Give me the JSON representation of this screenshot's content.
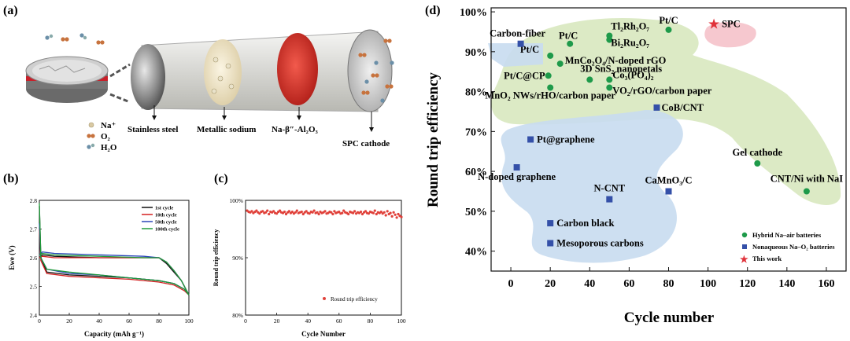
{
  "panels": {
    "a": "(a)",
    "b": "(b)",
    "c": "(c)",
    "d": "(d)"
  },
  "panel_a": {
    "labels": {
      "stainless": "Stainless steel",
      "sodium": "Metallic sodium",
      "electrolyte": "Na-β″-Al₂O₃",
      "cathode": "SPC cathode"
    },
    "legend": [
      {
        "label": "Na⁺",
        "color": "#d9c9a3"
      },
      {
        "label": "O₂",
        "color": "#c7733e"
      },
      {
        "label": "H₂O",
        "color": "#6b8fa8"
      }
    ]
  },
  "chart_data": [
    {
      "type": "line",
      "panel": "b",
      "xlabel": "Capacity (mAh g⁻¹)",
      "ylabel": "Ewe (V)",
      "xlim": [
        0,
        100
      ],
      "ylim": [
        2.4,
        2.8
      ],
      "xticks": [
        0,
        20,
        40,
        60,
        80,
        100
      ],
      "yticks": [
        2.4,
        2.5,
        2.6,
        2.7,
        2.8
      ],
      "legend_position": "top-right",
      "series": [
        {
          "name": "1st cycle",
          "color": "#111111",
          "charge": [
            [
              0,
              2.6
            ],
            [
              2,
              2.61
            ],
            [
              10,
              2.605
            ],
            [
              40,
              2.6
            ],
            [
              70,
              2.6
            ],
            [
              80,
              2.6
            ],
            [
              85,
              2.58
            ],
            [
              90,
              2.55
            ],
            [
              95,
              2.52
            ],
            [
              100,
              2.47
            ]
          ],
          "discharge": [
            [
              100,
              2.47
            ],
            [
              97,
              2.49
            ],
            [
              90,
              2.51
            ],
            [
              80,
              2.52
            ],
            [
              60,
              2.53
            ],
            [
              40,
              2.535
            ],
            [
              20,
              2.54
            ],
            [
              5,
              2.55
            ],
            [
              1,
              2.6
            ],
            [
              0,
              2.78
            ]
          ]
        },
        {
          "name": "10th cycle",
          "color": "#d42020",
          "charge": [
            [
              0,
              2.6
            ],
            [
              2,
              2.605
            ],
            [
              10,
              2.6
            ],
            [
              40,
              2.6
            ],
            [
              70,
              2.6
            ],
            [
              80,
              2.6
            ],
            [
              85,
              2.585
            ],
            [
              90,
              2.555
            ],
            [
              95,
              2.52
            ],
            [
              100,
              2.47
            ]
          ],
          "discharge": [
            [
              100,
              2.47
            ],
            [
              97,
              2.485
            ],
            [
              90,
              2.505
            ],
            [
              80,
              2.515
            ],
            [
              60,
              2.525
            ],
            [
              40,
              2.53
            ],
            [
              20,
              2.535
            ],
            [
              5,
              2.545
            ],
            [
              1,
              2.59
            ],
            [
              0,
              2.7
            ]
          ]
        },
        {
          "name": "50th cycle",
          "color": "#2a46b8",
          "charge": [
            [
              0,
              2.61
            ],
            [
              2,
              2.62
            ],
            [
              10,
              2.615
            ],
            [
              40,
              2.61
            ],
            [
              70,
              2.605
            ],
            [
              80,
              2.6
            ],
            [
              85,
              2.585
            ],
            [
              90,
              2.555
            ],
            [
              95,
              2.52
            ],
            [
              100,
              2.47
            ]
          ],
          "discharge": [
            [
              100,
              2.47
            ],
            [
              97,
              2.49
            ],
            [
              90,
              2.51
            ],
            [
              80,
              2.52
            ],
            [
              60,
              2.53
            ],
            [
              40,
              2.54
            ],
            [
              20,
              2.545
            ],
            [
              5,
              2.56
            ],
            [
              1,
              2.6
            ],
            [
              0,
              2.72
            ]
          ]
        },
        {
          "name": "100th cycle",
          "color": "#1f9a3a",
          "charge": [
            [
              0,
              2.61
            ],
            [
              2,
              2.615
            ],
            [
              10,
              2.61
            ],
            [
              40,
              2.605
            ],
            [
              70,
              2.6
            ],
            [
              80,
              2.6
            ],
            [
              85,
              2.585
            ],
            [
              90,
              2.555
            ],
            [
              95,
              2.52
            ],
            [
              100,
              2.47
            ]
          ],
          "discharge": [
            [
              100,
              2.47
            ],
            [
              97,
              2.49
            ],
            [
              90,
              2.51
            ],
            [
              80,
              2.52
            ],
            [
              60,
              2.53
            ],
            [
              40,
              2.54
            ],
            [
              20,
              2.55
            ],
            [
              5,
              2.56
            ],
            [
              1,
              2.6
            ],
            [
              0,
              2.79
            ]
          ]
        }
      ]
    },
    {
      "type": "scatter",
      "panel": "c",
      "xlabel": "Cycle Number",
      "ylabel": "Round trip efficiency",
      "xlim": [
        0,
        100
      ],
      "ylim": [
        80,
        100
      ],
      "xticks": [
        0,
        20,
        40,
        60,
        80,
        100
      ],
      "yticks": [
        80,
        90,
        100
      ],
      "ytick_labels": [
        "80%",
        "90%",
        "100%"
      ],
      "legend_position": "bottom-right",
      "series": [
        {
          "name": "Round trip efficiency",
          "color": "#e0413a",
          "marker": "circle"
        }
      ],
      "x": [
        1,
        2,
        3,
        4,
        5,
        6,
        7,
        8,
        9,
        10,
        11,
        12,
        13,
        14,
        15,
        16,
        17,
        18,
        19,
        20,
        21,
        22,
        23,
        24,
        25,
        26,
        27,
        28,
        29,
        30,
        31,
        32,
        33,
        34,
        35,
        36,
        37,
        38,
        39,
        40,
        41,
        42,
        43,
        44,
        45,
        46,
        47,
        48,
        49,
        50,
        51,
        52,
        53,
        54,
        55,
        56,
        57,
        58,
        59,
        60,
        61,
        62,
        63,
        64,
        65,
        66,
        67,
        68,
        69,
        70,
        71,
        72,
        73,
        74,
        75,
        76,
        77,
        78,
        79,
        80,
        81,
        82,
        83,
        84,
        85,
        86,
        87,
        88,
        89,
        90,
        91,
        92,
        93,
        94,
        95,
        96,
        97,
        98,
        99,
        100
      ],
      "y": [
        98.2,
        98.0,
        97.9,
        98.1,
        97.8,
        98.0,
        98.2,
        97.9,
        97.7,
        98.0,
        98.1,
        97.8,
        97.9,
        98.2,
        97.6,
        98.0,
        97.9,
        98.1,
        97.8,
        97.7,
        98.0,
        98.2,
        97.9,
        97.8,
        98.0,
        97.6,
        97.9,
        98.1,
        97.8,
        98.0,
        97.7,
        97.9,
        98.2,
        97.8,
        97.9,
        98.0,
        97.6,
        97.9,
        98.1,
        97.8,
        97.7,
        98.0,
        97.9,
        98.2,
        97.8,
        97.9,
        97.6,
        98.0,
        97.8,
        97.9,
        98.1,
        97.7,
        97.8,
        98.0,
        97.9,
        97.6,
        98.1,
        97.8,
        97.9,
        98.0,
        97.7,
        97.8,
        98.2,
        97.9,
        97.8,
        97.6,
        98.0,
        97.9,
        97.8,
        98.1,
        97.7,
        97.9,
        97.8,
        98.0,
        97.6,
        97.9,
        98.1,
        97.8,
        97.7,
        98.0,
        97.9,
        97.8,
        98.2,
        97.6,
        97.9,
        97.8,
        98.0,
        97.7,
        97.9,
        97.4,
        98.1,
        97.6,
        97.8,
        97.2,
        97.9,
        97.5,
        97.0,
        97.6,
        97.3,
        97.1
      ]
    },
    {
      "type": "scatter",
      "panel": "d",
      "xlabel": "Cycle number",
      "ylabel": "Round trip efficiency",
      "xlim": [
        -10,
        170
      ],
      "ylim": [
        35,
        101
      ],
      "xticks": [
        0,
        20,
        40,
        60,
        80,
        100,
        120,
        140,
        160
      ],
      "yticks": [
        40,
        50,
        60,
        70,
        80,
        90,
        100
      ],
      "ytick_labels": [
        "40%",
        "50%",
        "60%",
        "70%",
        "80%",
        "90%",
        "100%"
      ],
      "legend_position": "bottom-right",
      "legend": [
        {
          "label": "Hybrid Na–air batteries",
          "marker": "circle",
          "color": "#1e9a4a"
        },
        {
          "label": "Nonaqueous Na–O₂ batteries",
          "marker": "square",
          "color": "#3450a8"
        },
        {
          "label": "This work",
          "marker": "star",
          "color": "#e0313a"
        }
      ],
      "points": [
        {
          "series": "hybrid",
          "label": "Pt/C",
          "x": 30,
          "y": 92
        },
        {
          "series": "hybrid",
          "label": "Pt/C",
          "x": 20,
          "y": 89
        },
        {
          "series": "hybrid",
          "label": "Pt/C@CP",
          "x": 19,
          "y": 84
        },
        {
          "series": "hybrid",
          "label": "MnO₂ NWs/rHO/carbon paper",
          "x": 20,
          "y": 81
        },
        {
          "series": "hybrid",
          "label": "MnCo₂O₄/N-doped rGO",
          "x": 25,
          "y": 87
        },
        {
          "series": "hybrid",
          "label": "Tl₂Rh₂O₇",
          "x": 50,
          "y": 94
        },
        {
          "series": "hybrid",
          "label": "Bi₂Ru₂O₇",
          "x": 50,
          "y": 93
        },
        {
          "series": "hybrid",
          "label": "Pt/C",
          "x": 80,
          "y": 95.5
        },
        {
          "series": "hybrid",
          "label": "3D SnS₂ nanopetals",
          "x": 40,
          "y": 83
        },
        {
          "series": "hybrid",
          "label": "Co₃(PO₄)₂",
          "x": 50,
          "y": 83
        },
        {
          "series": "hybrid",
          "label": "VO₂/rGO/carbon paper",
          "x": 50,
          "y": 81
        },
        {
          "series": "hybrid",
          "label": "Gel cathode",
          "x": 125,
          "y": 62
        },
        {
          "series": "hybrid",
          "label": "CNT/Ni with NaI",
          "x": 150,
          "y": 55
        },
        {
          "series": "nonaqueous",
          "label": "Carbon-fiber",
          "x": 5,
          "y": 92
        },
        {
          "series": "nonaqueous",
          "label": "CoB/CNT",
          "x": 74,
          "y": 76
        },
        {
          "series": "nonaqueous",
          "label": "Pt@graphene",
          "x": 10,
          "y": 68
        },
        {
          "series": "nonaqueous",
          "label": "N-doped graphene",
          "x": 3,
          "y": 61
        },
        {
          "series": "nonaqueous",
          "label": "N-CNT",
          "x": 50,
          "y": 53
        },
        {
          "series": "nonaqueous",
          "label": "CaMnO₃/C",
          "x": 80,
          "y": 55
        },
        {
          "series": "nonaqueous",
          "label": "Carbon black",
          "x": 20,
          "y": 47
        },
        {
          "series": "nonaqueous",
          "label": "Mesoporous carbons",
          "x": 20,
          "y": 42
        },
        {
          "series": "this_work",
          "label": "SPC",
          "x": 103,
          "y": 97
        }
      ]
    }
  ]
}
